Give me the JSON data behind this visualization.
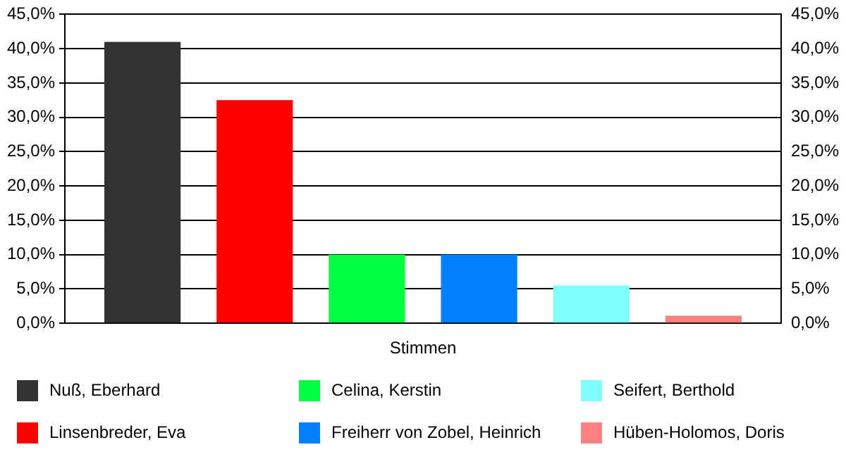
{
  "chart_data": {
    "type": "bar",
    "categories": [
      "Stimmen"
    ],
    "series": [
      {
        "name": "Nuß, Eberhard",
        "color": "#333333",
        "values": [
          41.0
        ]
      },
      {
        "name": "Linsenbreder, Eva",
        "color": "#ff0000",
        "values": [
          32.5
        ]
      },
      {
        "name": "Celina, Kerstin",
        "color": "#00ff40",
        "values": [
          10.0
        ]
      },
      {
        "name": "Freiherr von Zobel, Heinrich",
        "color": "#0080ff",
        "values": [
          10.0
        ]
      },
      {
        "name": "Seifert, Berthold",
        "color": "#80ffff",
        "values": [
          5.5
        ]
      },
      {
        "name": "Hüben-Holomos, Doris",
        "color": "#ff8080",
        "values": [
          1.1
        ]
      }
    ],
    "ylim": [
      0,
      45
    ],
    "yticks": [
      {
        "value": 0,
        "label": "0,0%"
      },
      {
        "value": 5,
        "label": "5,0%"
      },
      {
        "value": 10,
        "label": "10,0%"
      },
      {
        "value": 15,
        "label": "15,0%"
      },
      {
        "value": 20,
        "label": "20,0%"
      },
      {
        "value": 25,
        "label": "25,0%"
      },
      {
        "value": 30,
        "label": "30,0%"
      },
      {
        "value": 35,
        "label": "35,0%"
      },
      {
        "value": 40,
        "label": "40,0%"
      },
      {
        "value": 45,
        "label": "45,0%"
      }
    ],
    "grid": "y",
    "legend": "bottom"
  }
}
